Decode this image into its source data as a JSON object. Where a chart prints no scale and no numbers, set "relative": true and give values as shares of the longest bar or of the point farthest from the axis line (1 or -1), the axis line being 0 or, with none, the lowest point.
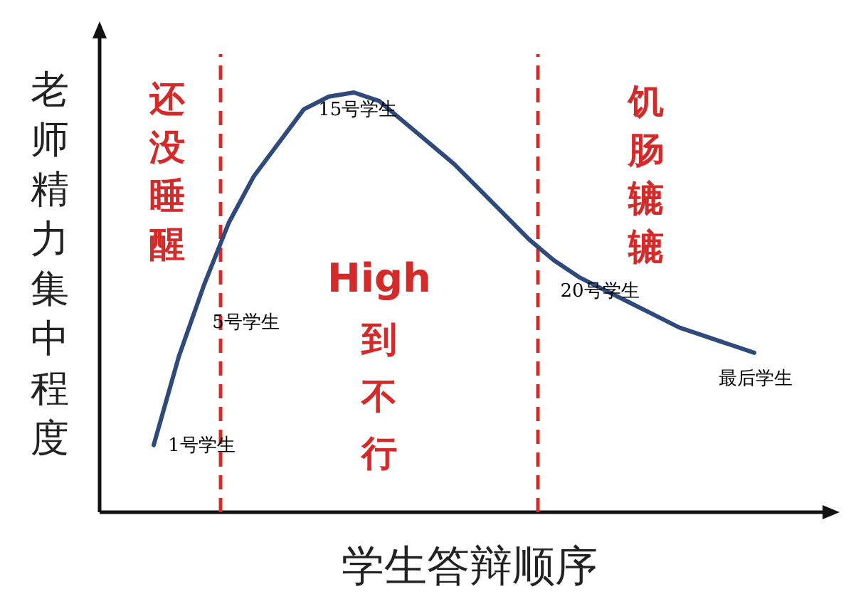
{
  "chart_data": {
    "type": "line",
    "relative": true,
    "xlabel": "学生答辩顺序",
    "ylabel": "老师精力集中程度",
    "categories": [
      null,
      null,
      null,
      null,
      null,
      null,
      null,
      null,
      null,
      null,
      null,
      null,
      null,
      null,
      null,
      null,
      null,
      null,
      null,
      null,
      null,
      null,
      null,
      null,
      null
    ],
    "series": [
      {
        "color": "#2f4a7a",
        "values": [
          0.16,
          0.37,
          0.54,
          0.69,
          0.8,
          0.88,
          0.96,
          0.99,
          1.0,
          0.98,
          0.93,
          0.88,
          0.83,
          0.77,
          0.71,
          0.65,
          0.6,
          0.56,
          0.53,
          0.5,
          0.47,
          0.44,
          0.42,
          0.4,
          0.38
        ]
      }
    ],
    "annotations": [
      "还没睡醒",
      "High到不行",
      "饥肠辘辘",
      "1号学生",
      "5号学生",
      "15号学生",
      "20号学生",
      "最后学生"
    ],
    "marker": "none",
    "line_style": "solid"
  }
}
